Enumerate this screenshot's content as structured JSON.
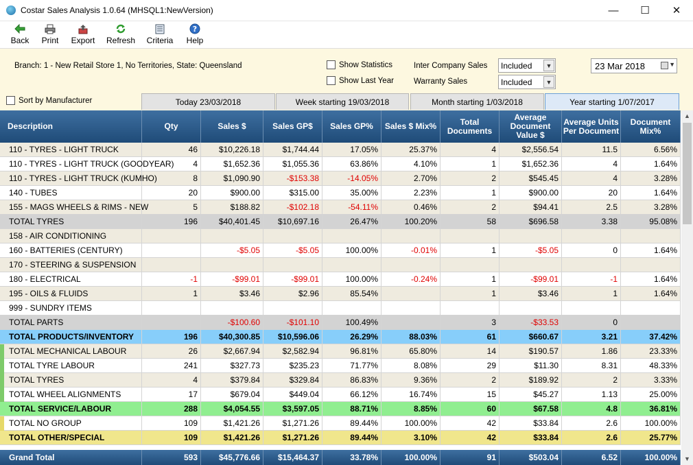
{
  "window": {
    "title": "Costar Sales Analysis 1.0.64 (MHSQL1:NewVersion)"
  },
  "toolbar": [
    {
      "label": "Back",
      "icon": "back-arrow-icon"
    },
    {
      "label": "Print",
      "icon": "printer-icon"
    },
    {
      "label": "Export",
      "icon": "export-icon"
    },
    {
      "label": "Refresh",
      "icon": "refresh-icon"
    },
    {
      "label": "Criteria",
      "icon": "criteria-icon"
    },
    {
      "label": "Help",
      "icon": "help-icon"
    }
  ],
  "filters": {
    "branch": "Branch: 1 - New Retail Store 1, No Territories, State: Queensland",
    "show_statistics": "Show Statistics",
    "show_last_year": "Show Last Year",
    "sort_by_manufacturer": "Sort by Manufacturer",
    "inter_company_label": "Inter Company Sales",
    "inter_company_value": "Included",
    "warranty_label": "Warranty Sales",
    "warranty_value": "Included",
    "date": "23 Mar 2018"
  },
  "tabs": [
    "Today 23/03/2018",
    "Week starting 19/03/2018",
    "Month starting 1/03/2018",
    "Year starting 1/07/2017"
  ],
  "active_tab": 3,
  "columns": [
    "Description",
    "Qty",
    "Sales $",
    "Sales GP$",
    "Sales GP%",
    "Sales $ Mix%",
    "Total Documents",
    "Average Document Value $",
    "Average Units Per Document",
    "Document Mix%"
  ],
  "colors": {
    "products_total": "#87cefa",
    "service_total": "#90ee90",
    "other_total": "#f0e68c",
    "subtotal": "#d3d3d3",
    "stripe": "#efebdf",
    "negative": "#e00000"
  },
  "rows": [
    {
      "desc": "110 - TYRES - LIGHT TRUCK",
      "vals": [
        "46",
        "$10,226.18",
        "$1,744.44",
        "17.05%",
        "25.37%",
        "4",
        "$2,556.54",
        "11.5",
        "6.56%"
      ],
      "style": "stripe"
    },
    {
      "desc": "110 - TYRES - LIGHT TRUCK (GOODYEAR)",
      "vals": [
        "4",
        "$1,652.36",
        "$1,055.36",
        "63.86%",
        "4.10%",
        "1",
        "$1,652.36",
        "4",
        "1.64%"
      ],
      "style": "white"
    },
    {
      "desc": "110 - TYRES - LIGHT TRUCK (KUMHO)",
      "vals": [
        "8",
        "$1,090.90",
        "-$153.38",
        "-14.05%",
        "2.70%",
        "2",
        "$545.45",
        "4",
        "3.28%"
      ],
      "style": "stripe"
    },
    {
      "desc": "140 - TUBES",
      "vals": [
        "20",
        "$900.00",
        "$315.00",
        "35.00%",
        "2.23%",
        "1",
        "$900.00",
        "20",
        "1.64%"
      ],
      "style": "white"
    },
    {
      "desc": "155 - MAGS WHEELS & RIMS - NEW",
      "vals": [
        "5",
        "$188.82",
        "-$102.18",
        "-54.11%",
        "0.46%",
        "2",
        "$94.41",
        "2.5",
        "3.28%"
      ],
      "style": "stripe"
    },
    {
      "desc": "TOTAL TYRES",
      "vals": [
        "196",
        "$40,401.45",
        "$10,697.16",
        "26.47%",
        "100.20%",
        "58",
        "$696.58",
        "3.38",
        "95.08%"
      ],
      "style": "subtotal"
    },
    {
      "desc": "158 - AIR CONDITIONING",
      "vals": [
        "",
        "",
        "",
        "",
        "",
        "",
        "",
        "",
        ""
      ],
      "style": "stripe"
    },
    {
      "desc": "160 - BATTERIES (CENTURY)",
      "vals": [
        "",
        "-$5.05",
        "-$5.05",
        "100.00%",
        "-0.01%",
        "1",
        "-$5.05",
        "0",
        "1.64%"
      ],
      "style": "white"
    },
    {
      "desc": "170 - STEERING & SUSPENSION",
      "vals": [
        "",
        "",
        "",
        "",
        "",
        "",
        "",
        "",
        ""
      ],
      "style": "stripe"
    },
    {
      "desc": "180 - ELECTRICAL",
      "vals": [
        "-1",
        "-$99.01",
        "-$99.01",
        "100.00%",
        "-0.24%",
        "1",
        "-$99.01",
        "-1",
        "1.64%"
      ],
      "style": "white"
    },
    {
      "desc": "195 - OILS & FLUIDS",
      "vals": [
        "1",
        "$3.46",
        "$2.96",
        "85.54%",
        "",
        "1",
        "$3.46",
        "1",
        "1.64%"
      ],
      "style": "stripe"
    },
    {
      "desc": "999 - SUNDRY ITEMS",
      "vals": [
        "",
        "",
        "",
        "",
        "",
        "",
        "",
        "",
        ""
      ],
      "style": "white"
    },
    {
      "desc": "TOTAL PARTS",
      "vals": [
        "",
        "-$100.60",
        "-$101.10",
        "100.49%",
        "",
        "3",
        "-$33.53",
        "0",
        ""
      ],
      "style": "subtotal"
    },
    {
      "desc": "TOTAL PRODUCTS/INVENTORY",
      "vals": [
        "196",
        "$40,300.85",
        "$10,596.06",
        "26.29%",
        "88.03%",
        "61",
        "$660.67",
        "3.21",
        "37.42%"
      ],
      "style": "products"
    },
    {
      "desc": "TOTAL MECHANICAL LABOUR",
      "vals": [
        "26",
        "$2,667.94",
        "$2,582.94",
        "96.81%",
        "65.80%",
        "14",
        "$190.57",
        "1.86",
        "23.33%"
      ],
      "style": "stripe",
      "strip": "service"
    },
    {
      "desc": "TOTAL TYRE LABOUR",
      "vals": [
        "241",
        "$327.73",
        "$235.23",
        "71.77%",
        "8.08%",
        "29",
        "$11.30",
        "8.31",
        "48.33%"
      ],
      "style": "white",
      "strip": "service"
    },
    {
      "desc": "TOTAL TYRES",
      "vals": [
        "4",
        "$379.84",
        "$329.84",
        "86.83%",
        "9.36%",
        "2",
        "$189.92",
        "2",
        "3.33%"
      ],
      "style": "stripe",
      "strip": "service"
    },
    {
      "desc": "TOTAL WHEEL ALIGNMENTS",
      "vals": [
        "17",
        "$679.04",
        "$449.04",
        "66.12%",
        "16.74%",
        "15",
        "$45.27",
        "1.13",
        "25.00%"
      ],
      "style": "white",
      "strip": "service"
    },
    {
      "desc": "TOTAL SERVICE/LABOUR",
      "vals": [
        "288",
        "$4,054.55",
        "$3,597.05",
        "88.71%",
        "8.85%",
        "60",
        "$67.58",
        "4.8",
        "36.81%"
      ],
      "style": "service"
    },
    {
      "desc": "TOTAL NO GROUP",
      "vals": [
        "109",
        "$1,421.26",
        "$1,271.26",
        "89.44%",
        "100.00%",
        "42",
        "$33.84",
        "2.6",
        "100.00%"
      ],
      "style": "white",
      "strip": "other"
    },
    {
      "desc": "TOTAL OTHER/SPECIAL",
      "vals": [
        "109",
        "$1,421.26",
        "$1,271.26",
        "89.44%",
        "3.10%",
        "42",
        "$33.84",
        "2.6",
        "25.77%"
      ],
      "style": "other"
    }
  ],
  "grand_total": {
    "desc": "Grand Total",
    "vals": [
      "593",
      "$45,776.66",
      "$15,464.37",
      "33.78%",
      "100.00%",
      "91",
      "$503.04",
      "6.52",
      "100.00%"
    ]
  }
}
